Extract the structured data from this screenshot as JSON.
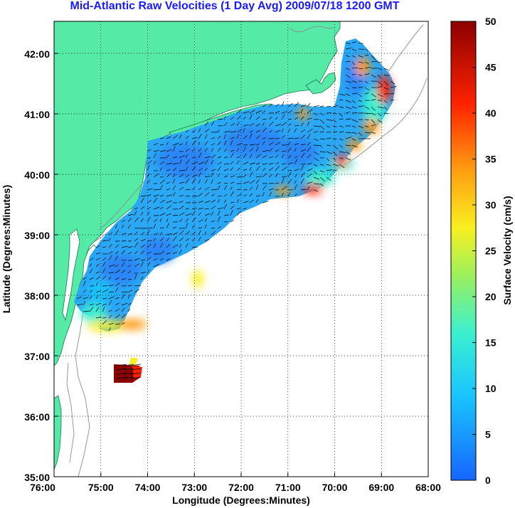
{
  "title": "Mid-Atlantic Raw Velocities (1 Day Avg) 2009/07/18 1200 GMT",
  "axes": {
    "xlabel": "Longitude (Degrees:Minutes)",
    "ylabel": "Latitude (Degrees:Minutes)",
    "x_ticks": [
      "76:00",
      "75:00",
      "74:00",
      "73:00",
      "72:00",
      "71:00",
      "70:00",
      "69:00",
      "68:00"
    ],
    "y_ticks": [
      "35:00",
      "36:00",
      "37:00",
      "38:00",
      "39:00",
      "40:00",
      "41:00",
      "42:00"
    ]
  },
  "colorbar": {
    "label": "Surface Velocity (cm/s)",
    "ticks": [
      "0",
      "5",
      "10",
      "15",
      "20",
      "25",
      "30",
      "35",
      "40",
      "45",
      "50"
    ],
    "range": [
      0,
      50
    ]
  },
  "colors": {
    "land": "#55eaa6",
    "title": "#1a1aff",
    "scale": [
      "#1766ff",
      "#18c3ff",
      "#3af0d0",
      "#9ff05a",
      "#f8f020",
      "#ff9a10",
      "#ff2200",
      "#8b0000"
    ]
  },
  "map": {
    "lon_range": [
      "76:00",
      "68:00"
    ],
    "lat_range": [
      "35:00",
      "42:30"
    ],
    "grid": "dotted",
    "coverage_region": "Mid-Atlantic Bight",
    "velocity_range_cm_s": [
      0,
      50
    ]
  }
}
